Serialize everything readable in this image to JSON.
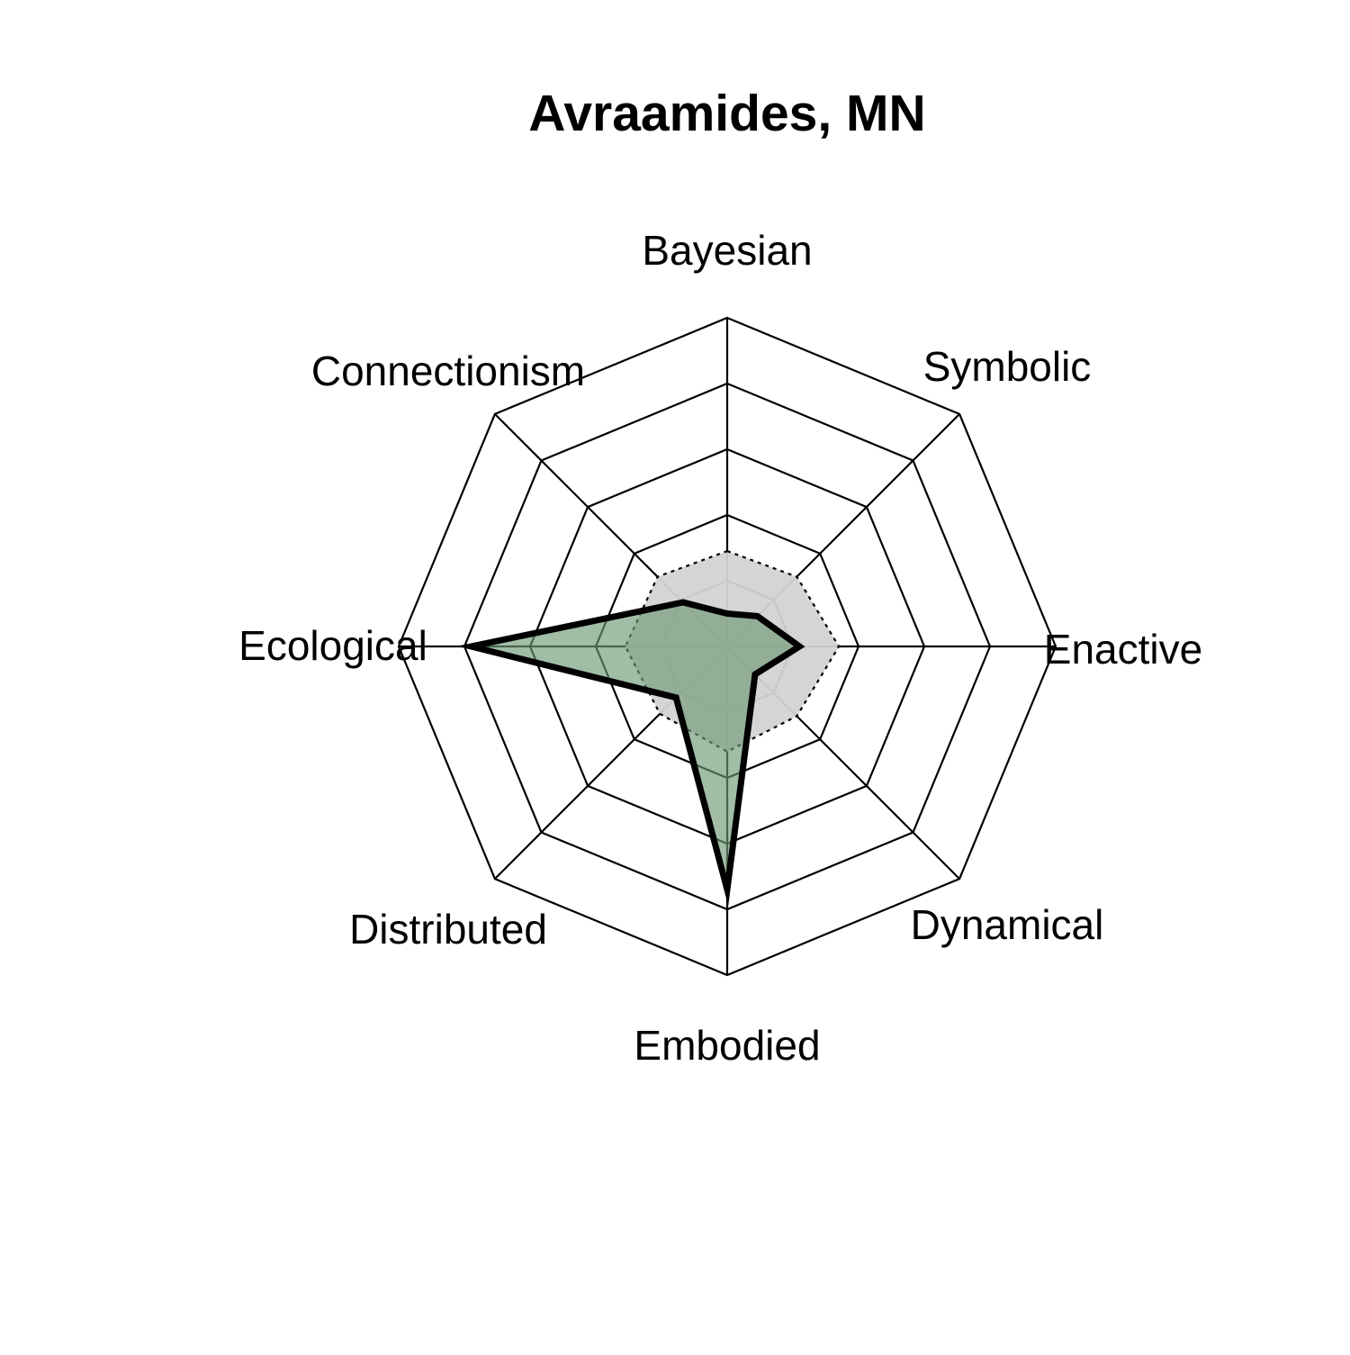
{
  "chart_data": {
    "type": "radar",
    "title": "Avraamides, MN",
    "axes": [
      "Bayesian",
      "Symbolic",
      "Enactive",
      "Dynamical",
      "Embodied",
      "Distributed",
      "Ecological",
      "Connectionism"
    ],
    "range": [
      0,
      1
    ],
    "grid_levels": 5,
    "series": [
      {
        "values": [
          0.1,
          0.13,
          0.22,
          0.12,
          0.74,
          0.22,
          0.78,
          0.19
        ],
        "fill_color": "#6f9a76",
        "stroke_color": "#000000"
      }
    ],
    "reference": {
      "values": [
        0.29,
        0.3,
        0.34,
        0.3,
        0.32,
        0.29,
        0.31,
        0.3
      ],
      "fill_color": "#d3d3d3",
      "stroke_style": "dotted"
    }
  }
}
